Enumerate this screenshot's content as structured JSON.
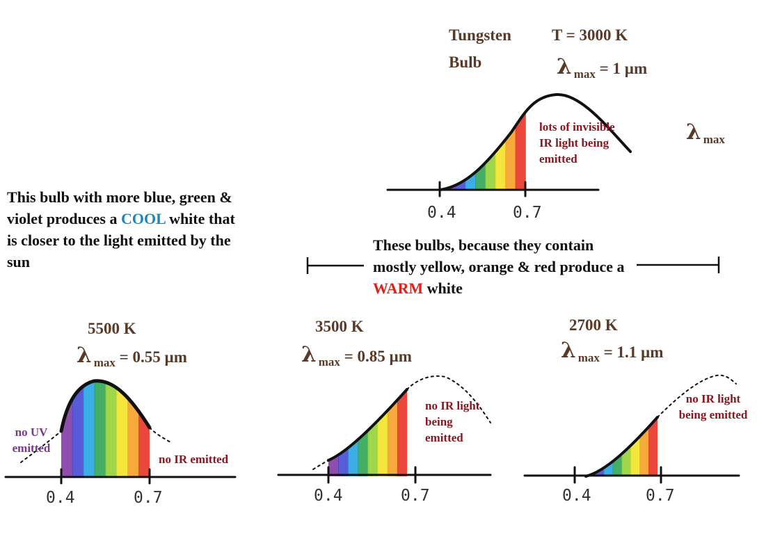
{
  "colors": {
    "brown": "#5a3a26",
    "cool": "#1f86b8",
    "warm": "#e0201a",
    "darkred": "#8a1720",
    "purple": "#7a3a8c"
  },
  "spectrum": [
    "#7a2fa0",
    "#3b3fd0",
    "#1aa0e0",
    "#23a04a",
    "#8fcf2a",
    "#f2e21a",
    "#f49b1a",
    "#e8281a"
  ],
  "tungsten": {
    "name_line1": "Tungsten",
    "name_line2": "Bulb",
    "temp": "T = 3000 K",
    "lambda_sym": "λ",
    "lambda_sub": "max",
    "lambda_val": "= 1 µm",
    "note": "lots of invisible IR light being emitted",
    "side_sym": "λ",
    "side_sub": "max",
    "tick1": "0.4",
    "tick2": "0.7"
  },
  "cool_text": {
    "pre": "This bulb with more blue, green & violet produces a ",
    "word": "COOL",
    "post": " white that is closer to the light emitted by the sun"
  },
  "warm_text": {
    "pre": "These bulbs, because they contain mostly yellow, orange & red produce a ",
    "word": "WARM",
    "post": " white"
  },
  "b5500": {
    "temp": "5500 K",
    "lambda_sym": "λ",
    "lambda_sub": "max",
    "lambda_val": "= 0.55 µm",
    "left_note": "no UV emitted",
    "right_note": "no IR emitted",
    "tick1": "0.4",
    "tick2": "0.7"
  },
  "b3500": {
    "temp": "3500 K",
    "lambda_sym": "λ",
    "lambda_sub": "max",
    "lambda_val": "= 0.85 µm",
    "note": "no IR light being emitted",
    "tick1": "0.4",
    "tick2": "0.7"
  },
  "b2700": {
    "temp": "2700 K",
    "lambda_sym": "λ",
    "lambda_sub": "max",
    "lambda_val": "= 1.1 µm",
    "note": "no IR light being emitted",
    "tick1": "0.4",
    "tick2": "0.7"
  }
}
